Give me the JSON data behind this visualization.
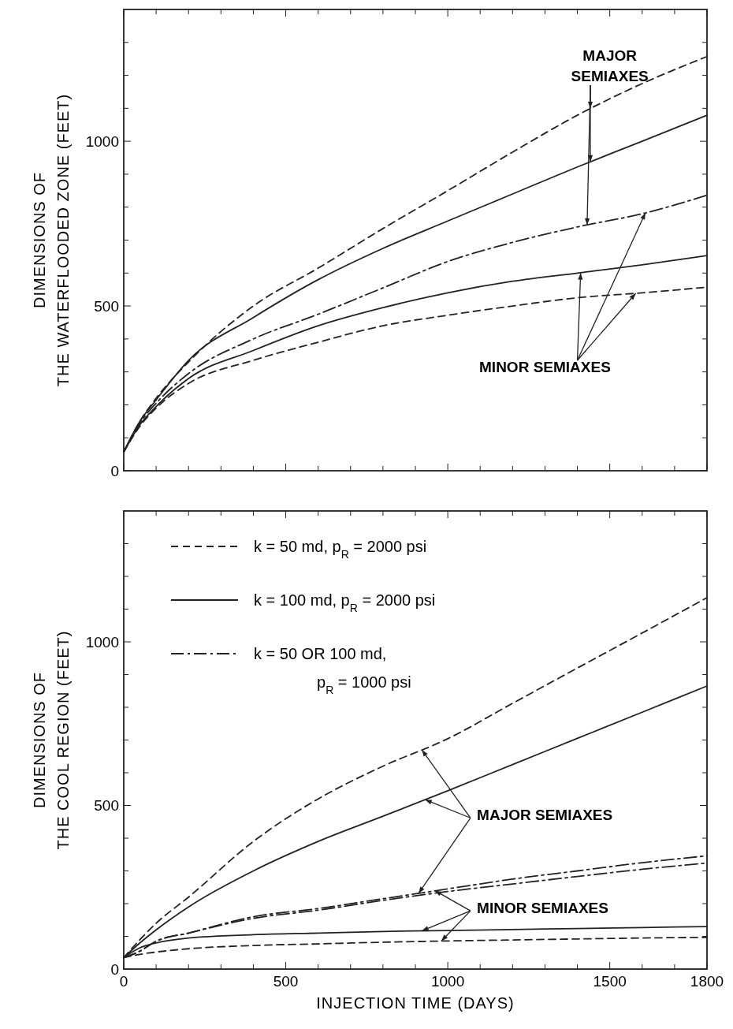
{
  "chart_data": [
    {
      "type": "line",
      "ylabel": "DIMENSIONS OF THE WATERFLOODED ZONE (FEET)",
      "tick_labels": "y",
      "x": [
        0,
        50,
        100,
        200,
        400,
        600,
        800,
        1000,
        1200,
        1400,
        1600,
        1800
      ],
      "series": [
        {
          "color": "#222222",
          "line_style": "dashed",
          "values": [
            57,
            150,
            220,
            330,
            500,
            615,
            735,
            850,
            967,
            1079,
            1175,
            1257
          ]
        },
        {
          "color": "#222222",
          "line_style": "solid",
          "values": [
            57,
            150,
            215,
            335,
            465,
            580,
            675,
            758,
            840,
            922,
            1000,
            1079
          ]
        },
        {
          "color": "#222222",
          "line_style": "dashdot",
          "values": [
            57,
            145,
            205,
            295,
            400,
            475,
            555,
            635,
            693,
            740,
            780,
            836
          ]
        },
        {
          "color": "#222222",
          "line_style": "solid",
          "values": [
            57,
            140,
            195,
            280,
            365,
            440,
            495,
            540,
            575,
            600,
            625,
            653
          ]
        },
        {
          "color": "#222222",
          "line_style": "dashed",
          "values": [
            57,
            135,
            190,
            265,
            335,
            390,
            440,
            472,
            500,
            525,
            540,
            557
          ]
        }
      ],
      "xlim": [
        0,
        1800
      ],
      "xticks": [
        0,
        {
          "value": 100,
          "label": null
        },
        {
          "value": 200,
          "label": null
        },
        {
          "value": 300,
          "label": null
        },
        {
          "value": 400,
          "label": null
        },
        500,
        {
          "value": 600,
          "label": null
        },
        {
          "value": 700,
          "label": null
        },
        {
          "value": 800,
          "label": null
        },
        {
          "value": 900,
          "label": null
        },
        1000,
        {
          "value": 1100,
          "label": null
        },
        {
          "value": 1200,
          "label": null
        },
        {
          "value": 1300,
          "label": null
        },
        {
          "value": 1400,
          "label": null
        },
        1500,
        {
          "value": 1600,
          "label": null
        },
        {
          "value": 1700,
          "label": null
        },
        1800
      ],
      "ylim": [
        0,
        1400
      ],
      "yticks": [
        0,
        {
          "value": 100,
          "label": null
        },
        {
          "value": 200,
          "label": null
        },
        {
          "value": 300,
          "label": null
        },
        {
          "value": 400,
          "label": null
        },
        500,
        {
          "value": 600,
          "label": null
        },
        {
          "value": 700,
          "label": null
        },
        {
          "value": 800,
          "label": null
        },
        {
          "value": 900,
          "label": null
        },
        1000,
        {
          "value": 1100,
          "label": null
        },
        {
          "value": 1200,
          "label": null
        },
        {
          "value": 1300,
          "label": null
        }
      ],
      "annotations": [
        {
          "text": "MAJOR SEMIAXES",
          "x": 1440,
          "y": 1100
        },
        {
          "text": "MINOR SEMIAXES",
          "x": 1410,
          "y": 600
        }
      ]
    },
    {
      "type": "line",
      "xlabel": "INJECTION TIME (DAYS)",
      "ylabel": "DIMENSIONS OF THE COOL REGION (FEET)",
      "legend": "top left",
      "x": [
        0,
        50,
        100,
        200,
        400,
        600,
        800,
        1000,
        1200,
        1400,
        1600,
        1800
      ],
      "series": [
        {
          "name": "k = 50 md, p$_{R}$ = 2000 psi",
          "color": "#222222",
          "line_style": "dashed",
          "values": [
            35,
            90,
            140,
            220,
            390,
            520,
            620,
            704,
            812,
            920,
            1027,
            1135
          ]
        },
        {
          "name": "k = 100 md, p$_{R}$ = 2000 psi",
          "color": "#222222",
          "line_style": "solid",
          "values": [
            35,
            80,
            120,
            190,
            300,
            390,
            467,
            545,
            625,
            705,
            785,
            865
          ]
        },
        {
          "name": "k = 50 OR 100 md, p$_{R}$ = 1000 psi",
          "color": "#222222",
          "line_style": "dashdot",
          "values": [
            35,
            55,
            85,
            110,
            160,
            185,
            215,
            245,
            275,
            300,
            325,
            346
          ]
        },
        {
          "color": "#222222",
          "line_style": "dashdot",
          "values": [
            35,
            55,
            85,
            110,
            155,
            180,
            210,
            237,
            260,
            283,
            305,
            324
          ]
        },
        {
          "color": "#222222",
          "line_style": "solid",
          "values": [
            35,
            65,
            80,
            95,
            105,
            110,
            115,
            118,
            121,
            124,
            127,
            130
          ]
        },
        {
          "color": "#222222",
          "line_style": "dashed",
          "values": [
            35,
            45,
            52,
            62,
            72,
            77,
            82,
            86,
            89,
            92,
            95,
            97
          ]
        }
      ],
      "xlim": [
        0,
        1800
      ],
      "xticks": [
        0,
        {
          "value": 100,
          "label": null
        },
        {
          "value": 200,
          "label": null
        },
        {
          "value": 300,
          "label": null
        },
        {
          "value": 400,
          "label": null
        },
        500,
        {
          "value": 600,
          "label": null
        },
        {
          "value": 700,
          "label": null
        },
        {
          "value": 800,
          "label": null
        },
        {
          "value": 900,
          "label": null
        },
        1000,
        {
          "value": 1100,
          "label": null
        },
        {
          "value": 1200,
          "label": null
        },
        {
          "value": 1300,
          "label": null
        },
        {
          "value": 1400,
          "label": null
        },
        1500,
        {
          "value": 1600,
          "label": null
        },
        {
          "value": 1700,
          "label": null
        },
        1800
      ],
      "ylim": [
        0,
        1400
      ],
      "yticks": [
        0,
        {
          "value": 100,
          "label": null
        },
        {
          "value": 200,
          "label": null
        },
        {
          "value": 300,
          "label": null
        },
        {
          "value": 400,
          "label": null
        },
        500,
        {
          "value": 600,
          "label": null
        },
        {
          "value": 700,
          "label": null
        },
        {
          "value": 800,
          "label": null
        },
        {
          "value": 900,
          "label": null
        },
        1000,
        {
          "value": 1100,
          "label": null
        },
        {
          "value": 1200,
          "label": null
        },
        {
          "value": 1300,
          "label": null
        }
      ],
      "annotations": [
        {
          "text": "MAJOR SEMIAXES",
          "x": 920,
          "y": 670
        },
        {
          "text": "MINOR SEMIAXES",
          "x": 960,
          "y": 240
        }
      ]
    }
  ]
}
